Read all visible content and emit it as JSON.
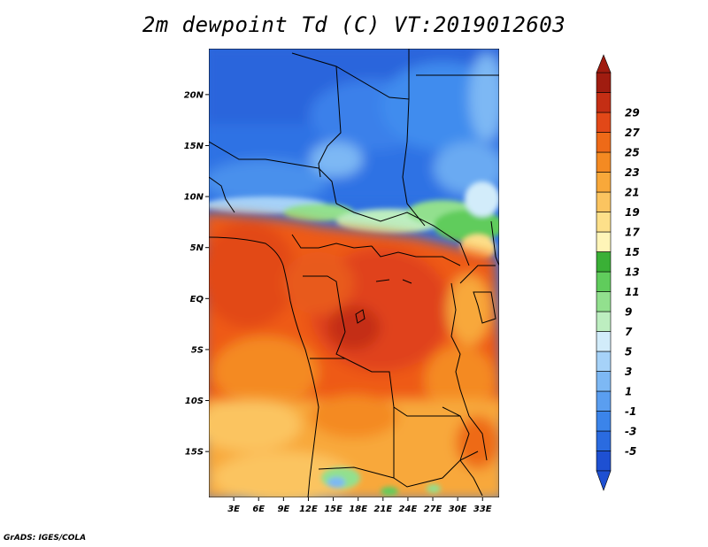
{
  "title": "2m dewpoint Td (C) VT:2019012603",
  "credit": "GrADS: IGES/COLA",
  "map": {
    "lat_range": [
      -19.5,
      24.5
    ],
    "lon_range": [
      0,
      35
    ],
    "lat_ticks": [
      {
        "value": 20,
        "label": "20N"
      },
      {
        "value": 15,
        "label": "15N"
      },
      {
        "value": 10,
        "label": "10N"
      },
      {
        "value": 5,
        "label": "5N"
      },
      {
        "value": 0,
        "label": "EQ"
      },
      {
        "value": -5,
        "label": "5S"
      },
      {
        "value": -10,
        "label": "10S"
      },
      {
        "value": -15,
        "label": "15S"
      }
    ],
    "lon_ticks": [
      {
        "value": 3,
        "label": "3E"
      },
      {
        "value": 6,
        "label": "6E"
      },
      {
        "value": 9,
        "label": "9E"
      },
      {
        "value": 12,
        "label": "12E"
      },
      {
        "value": 15,
        "label": "15E"
      },
      {
        "value": 18,
        "label": "18E"
      },
      {
        "value": 21,
        "label": "21E"
      },
      {
        "value": 24,
        "label": "24E"
      },
      {
        "value": 27,
        "label": "27E"
      },
      {
        "value": 30,
        "label": "30E"
      },
      {
        "value": 33,
        "label": "33E"
      }
    ]
  },
  "colorbar": {
    "bins": [
      {
        "color": "#1e50d2",
        "label": "-5"
      },
      {
        "color": "#2a6be0",
        "label": "-3"
      },
      {
        "color": "#3b84ea",
        "label": "-1"
      },
      {
        "color": "#5a9ef0",
        "label": "1"
      },
      {
        "color": "#7db8f4",
        "label": "3"
      },
      {
        "color": "#a6d2f8",
        "label": "5"
      },
      {
        "color": "#d2ecfa",
        "label": "7"
      },
      {
        "color": "#bdeec0",
        "label": "9"
      },
      {
        "color": "#92e08e",
        "label": "11"
      },
      {
        "color": "#60cc5c",
        "label": "13"
      },
      {
        "color": "#3ab036",
        "label": "15"
      },
      {
        "color": "#fff5b8",
        "label": "17"
      },
      {
        "color": "#fde08a",
        "label": "19"
      },
      {
        "color": "#fbc460",
        "label": "21"
      },
      {
        "color": "#f8a83a",
        "label": "23"
      },
      {
        "color": "#f48a22",
        "label": "25"
      },
      {
        "color": "#ee6a18",
        "label": "27"
      },
      {
        "color": "#e24818",
        "label": "29"
      },
      {
        "color": "#c42e14",
        "label": ""
      },
      {
        "color": "#a01c10",
        "label": ""
      }
    ]
  }
}
